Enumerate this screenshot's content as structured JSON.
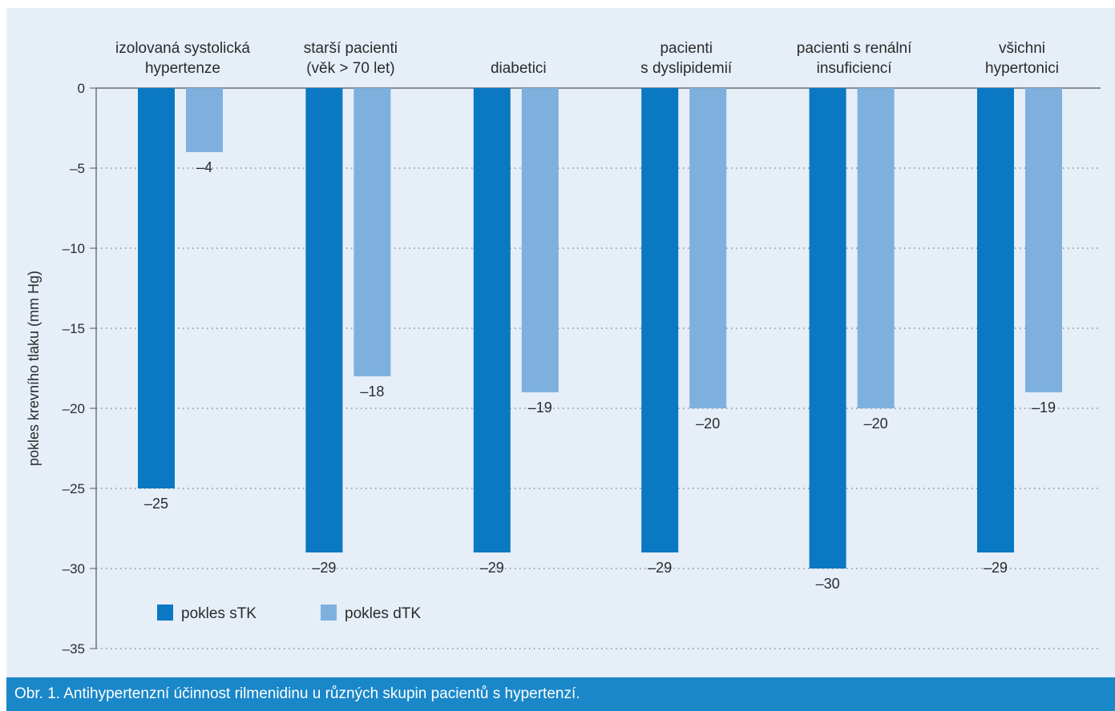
{
  "caption": "Obr. 1. Antihypertenzní účinnost rilmenidinu u různých skupin pacientů s hypertenzí.",
  "chart_data": {
    "type": "bar",
    "categories": [
      [
        "izolovaná systolická",
        "hypertenze"
      ],
      [
        "starší pacienti",
        "(věk > 70 let)"
      ],
      [
        "diabetici"
      ],
      [
        "pacienti",
        "s dyslipidemií"
      ],
      [
        "pacienti s renální",
        "insuficiencí"
      ],
      [
        "všichni",
        "hypertonici"
      ]
    ],
    "series": [
      {
        "name": "pokles sTK",
        "values": [
          -25,
          -29,
          -29,
          -29,
          -30,
          -29
        ],
        "color": "#0a78c2"
      },
      {
        "name": "pokles dTK",
        "values": [
          -4,
          -18,
          -19,
          -20,
          -20,
          -19
        ],
        "color": "#7eb0de"
      }
    ],
    "data_labels": [
      [
        "–25",
        "–29",
        "–29",
        "–29",
        "–30",
        "–29"
      ],
      [
        "–4",
        "–18",
        "–19",
        "–20",
        "–20",
        "–19"
      ]
    ],
    "ylabel": "pokles krevního tlaku (mm Hg)",
    "ylim": [
      -35,
      0
    ],
    "yticks": [
      0,
      -5,
      -10,
      -15,
      -20,
      -25,
      -30,
      -35
    ],
    "ytick_labels": [
      "0",
      "–5",
      "–10",
      "–15",
      "–20",
      "–25",
      "–30",
      "–35"
    ],
    "grid": "horizontal dotted",
    "legend_position": "bottom-left",
    "background_color": "#e6eef8",
    "caption_bar_color": "#1a87c9"
  }
}
